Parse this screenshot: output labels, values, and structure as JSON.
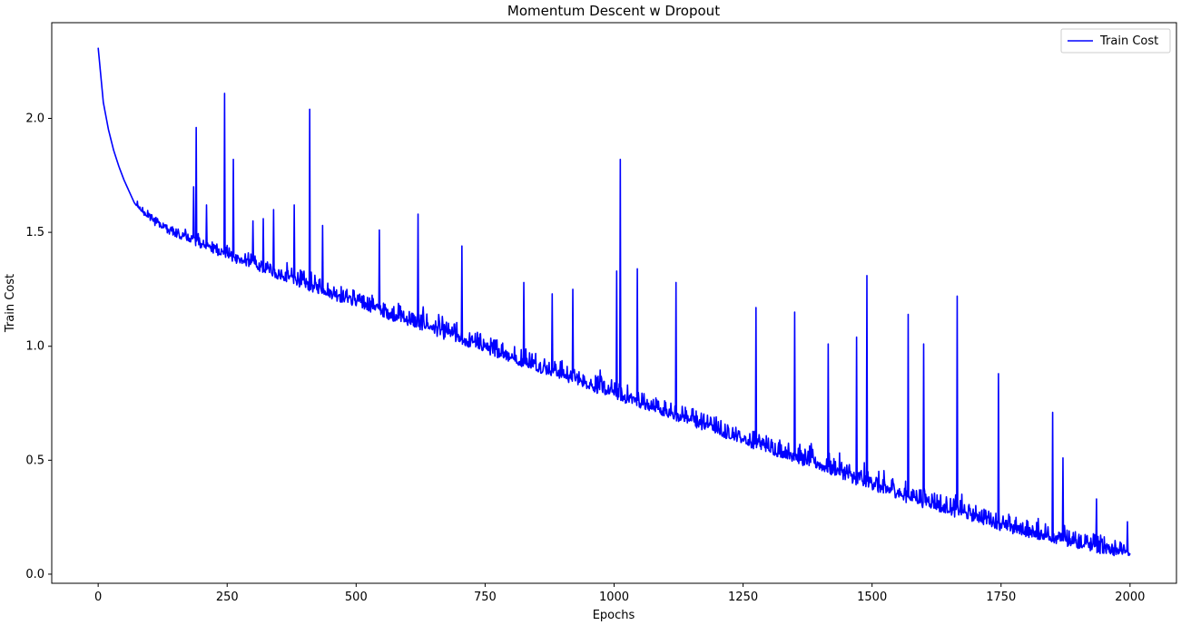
{
  "chart_data": {
    "type": "line",
    "title": "Momentum Descent w Dropout",
    "xlabel": "Epochs",
    "ylabel": "Train Cost",
    "xlim": [
      -90,
      2090
    ],
    "ylim": [
      -0.04,
      2.42
    ],
    "x_ticks": [
      0,
      250,
      500,
      750,
      1000,
      1250,
      1500,
      1750,
      2000
    ],
    "y_ticks": [
      0.0,
      0.5,
      1.0,
      1.5,
      2.0
    ],
    "grid": false,
    "legend_position": "top-right",
    "series": [
      {
        "name": "Train Cost",
        "color": "#0000ff",
        "x_start": 0,
        "x_step": 10,
        "values": [
          2.31,
          2.07,
          1.95,
          1.86,
          1.79,
          1.73,
          1.68,
          1.63,
          1.6,
          1.57,
          1.55,
          1.53,
          1.52,
          1.5,
          1.49,
          1.48,
          1.47,
          1.46,
          1.45,
          1.44,
          1.43,
          1.42,
          1.41,
          1.4,
          1.39,
          1.38,
          1.37,
          1.36,
          1.35,
          1.35,
          1.34,
          1.33,
          1.32,
          1.31,
          1.3,
          1.29,
          1.28,
          1.28,
          1.27,
          1.26,
          1.25,
          1.24,
          1.23,
          1.23,
          1.22,
          1.21,
          1.2,
          1.19,
          1.19,
          1.18,
          1.17,
          1.16,
          1.15,
          1.15,
          1.14,
          1.13,
          1.12,
          1.11,
          1.11,
          1.1,
          1.09,
          1.08,
          1.07,
          1.07,
          1.06,
          1.05,
          1.04,
          1.03,
          1.03,
          1.02,
          1.01,
          1.0,
          0.99,
          0.99,
          0.98,
          0.97,
          0.96,
          0.95,
          0.95,
          0.94,
          0.93,
          0.92,
          0.91,
          0.91,
          0.9,
          0.89,
          0.88,
          0.87,
          0.87,
          0.86,
          0.85,
          0.84,
          0.83,
          0.83,
          0.82,
          0.81,
          0.8,
          0.79,
          0.79,
          0.78,
          0.77,
          0.76,
          0.75,
          0.75,
          0.74,
          0.73,
          0.72,
          0.71,
          0.71,
          0.7,
          0.69,
          0.68,
          0.67,
          0.67,
          0.66,
          0.65,
          0.64,
          0.63,
          0.63,
          0.62,
          0.61,
          0.6,
          0.59,
          0.59,
          0.58,
          0.57,
          0.56,
          0.55,
          0.55,
          0.54,
          0.53,
          0.52,
          0.51,
          0.51,
          0.5,
          0.49,
          0.48,
          0.47,
          0.47,
          0.46,
          0.45,
          0.44,
          0.43,
          0.43,
          0.42,
          0.41,
          0.4,
          0.39,
          0.39,
          0.38,
          0.37,
          0.36,
          0.35,
          0.35,
          0.34,
          0.33,
          0.32,
          0.31,
          0.31,
          0.3,
          0.29,
          0.29,
          0.28,
          0.27,
          0.27,
          0.26,
          0.25,
          0.25,
          0.24,
          0.23,
          0.23,
          0.22,
          0.21,
          0.21,
          0.2,
          0.19,
          0.19,
          0.18,
          0.17,
          0.17,
          0.16,
          0.16,
          0.15,
          0.15,
          0.14,
          0.14,
          0.13,
          0.13,
          0.12,
          0.12,
          0.11,
          0.11,
          0.1,
          0.1,
          0.09,
          0.09,
          0.09,
          0.08,
          0.08,
          0.08,
          0.08,
          0.08,
          0.08
        ],
        "noise_high": [
          0.0,
          0.0,
          0.0,
          0.0,
          0.0,
          0.0,
          0.0,
          0.0,
          0.02,
          0.03,
          0.05,
          0.06,
          0.07,
          0.08,
          0.09,
          0.1,
          0.1,
          0.11,
          0.12,
          0.12,
          0.13,
          0.13,
          0.14,
          0.14,
          0.15,
          0.15,
          0.15,
          0.16,
          0.16,
          0.16,
          0.17,
          0.17,
          0.17,
          0.18,
          0.18,
          0.18,
          0.18,
          0.19,
          0.19,
          0.19,
          0.19,
          0.19,
          0.2,
          0.2,
          0.2,
          0.2,
          0.2,
          0.2,
          0.2,
          0.21,
          0.21,
          0.21,
          0.21,
          0.21,
          0.21,
          0.21,
          0.21,
          0.21,
          0.21,
          0.21,
          0.21,
          0.21,
          0.21,
          0.21,
          0.22,
          0.22,
          0.22,
          0.22,
          0.22,
          0.22,
          0.22,
          0.22,
          0.22,
          0.22,
          0.22,
          0.22,
          0.22,
          0.22,
          0.22,
          0.22,
          0.22,
          0.22,
          0.22,
          0.22,
          0.22,
          0.22,
          0.22,
          0.22,
          0.22,
          0.22,
          0.22,
          0.22,
          0.22,
          0.22,
          0.22,
          0.22,
          0.22,
          0.22,
          0.22,
          0.22,
          0.22,
          0.22,
          0.22,
          0.22,
          0.22,
          0.22,
          0.22,
          0.22,
          0.22,
          0.22,
          0.22,
          0.22,
          0.22,
          0.22,
          0.22,
          0.22,
          0.22,
          0.22,
          0.22,
          0.22,
          0.22,
          0.22,
          0.22,
          0.22,
          0.22,
          0.22,
          0.22,
          0.22,
          0.22,
          0.22,
          0.22,
          0.22,
          0.22,
          0.22,
          0.22,
          0.22,
          0.22,
          0.22,
          0.22,
          0.22,
          0.22,
          0.22,
          0.22,
          0.22,
          0.22,
          0.22,
          0.22,
          0.22,
          0.22,
          0.22,
          0.22,
          0.22,
          0.22,
          0.22,
          0.22,
          0.22,
          0.22,
          0.22,
          0.22,
          0.22,
          0.22,
          0.22,
          0.22,
          0.22,
          0.22,
          0.22,
          0.22,
          0.22,
          0.22,
          0.22,
          0.22,
          0.22,
          0.22,
          0.22,
          0.22,
          0.22,
          0.22,
          0.22,
          0.22,
          0.22,
          0.22,
          0.22,
          0.22,
          0.22,
          0.22,
          0.22,
          0.22,
          0.22,
          0.22,
          0.22,
          0.22,
          0.22,
          0.22,
          0.22,
          0.22,
          0.22,
          0.22,
          0.22,
          0.14,
          0.1
        ],
        "spikes": [
          {
            "x": 185,
            "y": 1.7
          },
          {
            "x": 190,
            "y": 1.96
          },
          {
            "x": 210,
            "y": 1.62
          },
          {
            "x": 245,
            "y": 2.11
          },
          {
            "x": 262,
            "y": 1.82
          },
          {
            "x": 300,
            "y": 1.55
          },
          {
            "x": 320,
            "y": 1.56
          },
          {
            "x": 340,
            "y": 1.6
          },
          {
            "x": 380,
            "y": 1.62
          },
          {
            "x": 410,
            "y": 2.04
          },
          {
            "x": 435,
            "y": 1.53
          },
          {
            "x": 545,
            "y": 1.51
          },
          {
            "x": 620,
            "y": 1.58
          },
          {
            "x": 705,
            "y": 1.44
          },
          {
            "x": 825,
            "y": 1.28
          },
          {
            "x": 880,
            "y": 1.23
          },
          {
            "x": 920,
            "y": 1.25
          },
          {
            "x": 1005,
            "y": 1.33
          },
          {
            "x": 1012,
            "y": 1.82
          },
          {
            "x": 1045,
            "y": 1.34
          },
          {
            "x": 1120,
            "y": 1.28
          },
          {
            "x": 1275,
            "y": 1.17
          },
          {
            "x": 1350,
            "y": 1.15
          },
          {
            "x": 1415,
            "y": 1.01
          },
          {
            "x": 1470,
            "y": 1.04
          },
          {
            "x": 1490,
            "y": 1.31
          },
          {
            "x": 1570,
            "y": 1.14
          },
          {
            "x": 1600,
            "y": 1.01
          },
          {
            "x": 1665,
            "y": 1.22
          },
          {
            "x": 1745,
            "y": 0.88
          },
          {
            "x": 1850,
            "y": 0.71
          },
          {
            "x": 1870,
            "y": 0.51
          },
          {
            "x": 1935,
            "y": 0.33
          },
          {
            "x": 1995,
            "y": 0.23
          }
        ]
      }
    ]
  }
}
